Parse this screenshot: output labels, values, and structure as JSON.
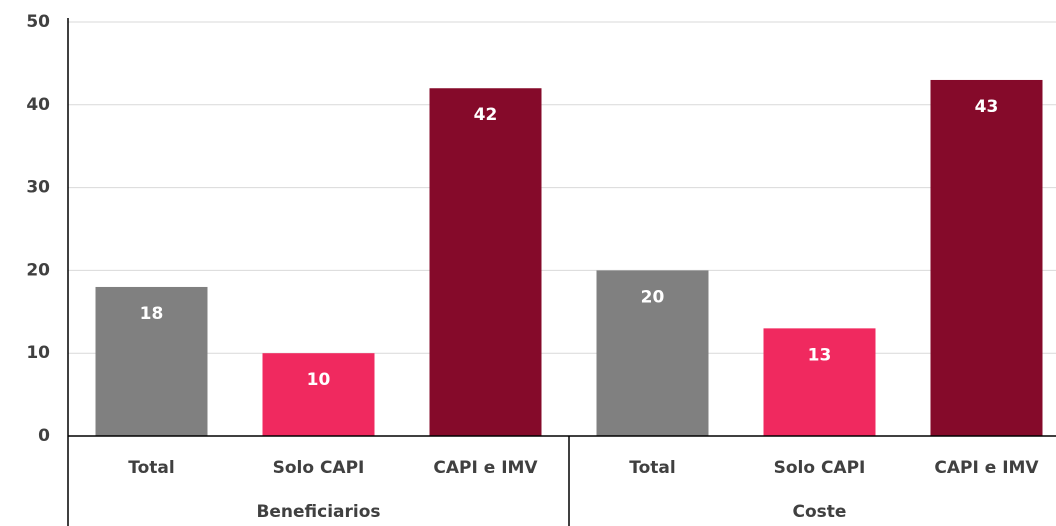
{
  "chart_data": {
    "type": "bar",
    "groups": [
      {
        "name": "Beneficiarios",
        "categories": [
          "Total",
          "Solo CAPI",
          "CAPI e IMV"
        ],
        "values": [
          18,
          10,
          42
        ]
      },
      {
        "name": "Coste",
        "categories": [
          "Total",
          "Solo CAPI",
          "CAPI e IMV"
        ],
        "values": [
          20,
          13,
          43
        ]
      }
    ],
    "colors": [
      "#808080",
      "#f0295f",
      "#850a2a"
    ],
    "ylim": [
      0,
      50
    ],
    "yticks": [
      0,
      10,
      20,
      30,
      40,
      50
    ],
    "grid": true
  }
}
